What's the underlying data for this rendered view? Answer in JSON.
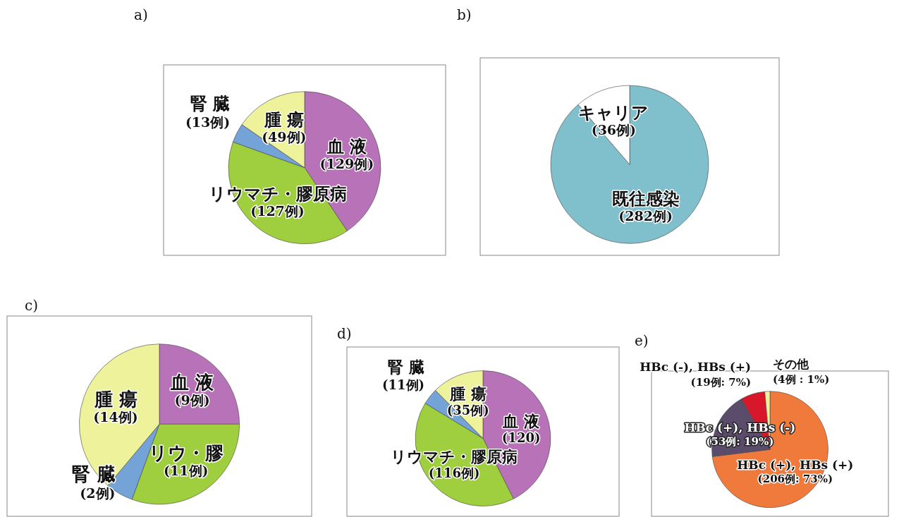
{
  "chart_data": [
    {
      "type": "pie",
      "title": "a)",
      "categories": [
        "血 液",
        "リウマチ・膠原病",
        "腎 臓",
        "腫 瘍"
      ],
      "values": [
        129,
        127,
        13,
        49
      ],
      "colors": [
        "#b873b8",
        "#9fcf3f",
        "#74a3d8",
        "#eef29a"
      ],
      "value_labels": [
        "(129例)",
        "(127例)",
        "(13例)",
        "(49例)"
      ]
    },
    {
      "type": "pie",
      "title": "b)",
      "categories": [
        "既往感染",
        "キャリア"
      ],
      "values": [
        282,
        36
      ],
      "colors": [
        "#80bfcc",
        "#ffffff"
      ],
      "value_labels": [
        "(282例)",
        "(36例)"
      ]
    },
    {
      "type": "pie",
      "title": "c)",
      "categories": [
        "血 液",
        "リウ・膠",
        "腎 臓",
        "腫 瘍"
      ],
      "values": [
        9,
        11,
        2,
        14
      ],
      "colors": [
        "#b873b8",
        "#9fcf3f",
        "#74a3d8",
        "#eef29a"
      ],
      "value_labels": [
        "(9例)",
        "(11例)",
        "(2例)",
        "(14例)"
      ]
    },
    {
      "type": "pie",
      "title": "d)",
      "categories": [
        "血 液",
        "リウマチ・膠原病",
        "腎 臓",
        "腫 瘍"
      ],
      "values": [
        120,
        116,
        11,
        35
      ],
      "colors": [
        "#b873b8",
        "#9fcf3f",
        "#74a3d8",
        "#eef29a"
      ],
      "value_labels": [
        "(120)",
        "(116例)",
        "(11例)",
        "(35例)"
      ]
    },
    {
      "type": "pie",
      "title": "e)",
      "categories": [
        "HBc (+), HBs (+)",
        "HBc (+), HBs (-)",
        "HBc (-), HBs (+)",
        "その他"
      ],
      "values": [
        206,
        53,
        19,
        4
      ],
      "colors": [
        "#f07a3c",
        "#5b4c6c",
        "#d8182a",
        "#eef29a"
      ],
      "value_labels": [
        "(206例: 73%)",
        "(53例: 19%)",
        "(19例: 7%)",
        "(4例 : 1%)"
      ]
    }
  ]
}
